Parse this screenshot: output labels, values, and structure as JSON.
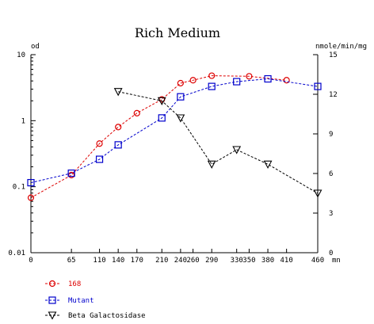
{
  "chart_data": {
    "type": "line",
    "title": "Rich Medium",
    "x_unit": "mn",
    "left_axis": {
      "label": "od",
      "scale": "log",
      "range": [
        0.01,
        10
      ],
      "ticks": [
        0.01,
        0.1,
        1,
        10
      ],
      "tick_labels": [
        "0.01",
        "0.1",
        "1",
        "10"
      ]
    },
    "right_axis": {
      "label": "nmole/min/mg",
      "scale": "linear",
      "range": [
        0,
        15
      ],
      "ticks": [
        0,
        3,
        6,
        9,
        12,
        15
      ],
      "tick_labels": [
        "0",
        "3",
        "6",
        "9",
        "12",
        "15"
      ]
    },
    "x_axis": {
      "range": [
        0,
        460
      ],
      "ticks": [
        0,
        65,
        110,
        140,
        170,
        210,
        240,
        260,
        290,
        330,
        350,
        380,
        410,
        460
      ],
      "tick_labels": [
        "0",
        "65",
        "110",
        "140",
        "170",
        "210",
        "240",
        "260",
        "290",
        "330",
        "350",
        "380",
        "410",
        "460"
      ]
    },
    "grid": false,
    "legend_position": "bottom-left",
    "series": [
      {
        "name": "168",
        "axis": "left",
        "color": "#dd0000",
        "marker": "circle",
        "x": [
          0,
          65,
          110,
          140,
          170,
          210,
          240,
          260,
          290,
          350,
          410
        ],
        "y": [
          0.068,
          0.15,
          0.45,
          0.8,
          1.3,
          2.1,
          3.7,
          4.1,
          4.8,
          4.7,
          4.1
        ]
      },
      {
        "name": "Mutant",
        "axis": "left",
        "color": "#0000cc",
        "marker": "square",
        "x": [
          0,
          65,
          110,
          140,
          210,
          240,
          290,
          330,
          380,
          460
        ],
        "y": [
          0.115,
          0.16,
          0.26,
          0.43,
          1.1,
          2.3,
          3.3,
          3.9,
          4.3,
          3.3
        ]
      },
      {
        "name": "Beta Galactosidase",
        "axis": "right",
        "color": "#000000",
        "marker": "triangle-down",
        "x": [
          140,
          210,
          240,
          290,
          330,
          380,
          460
        ],
        "y": [
          12.2,
          11.5,
          10.2,
          6.7,
          7.8,
          6.7,
          4.5
        ]
      }
    ]
  }
}
